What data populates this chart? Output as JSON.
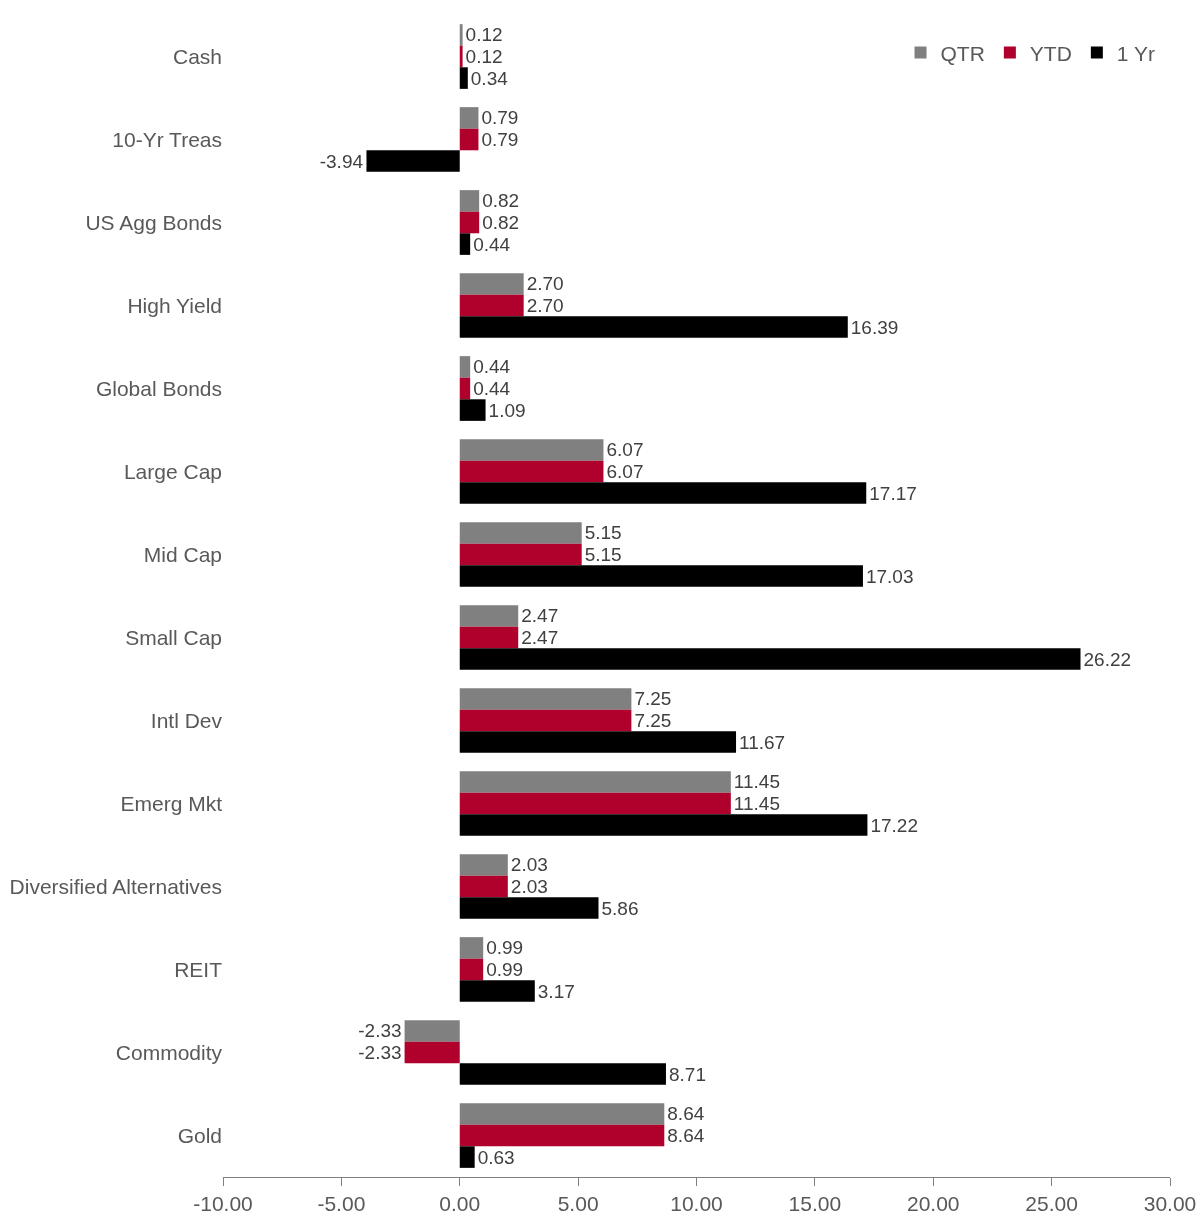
{
  "chart_data": {
    "type": "bar",
    "orientation": "horizontal",
    "categories": [
      "Cash",
      "10-Yr Treas",
      "US Agg Bonds",
      "High Yield",
      "Global Bonds",
      "Large Cap",
      "Mid Cap",
      "Small Cap",
      "Intl Dev",
      "Emerg Mkt",
      "Diversified Alternatives",
      "REIT",
      "Commodity",
      "Gold"
    ],
    "series": [
      {
        "name": "QTR",
        "color": "#808080",
        "values": [
          0.12,
          0.79,
          0.82,
          2.7,
          0.44,
          6.07,
          5.15,
          2.47,
          7.25,
          11.45,
          2.03,
          0.99,
          -2.33,
          8.64
        ],
        "value_labels": [
          "0.12",
          "0.79",
          "0.82",
          "2.70",
          "0.44",
          "6.07",
          "5.15",
          "2.47",
          "7.25",
          "11.45",
          "2.03",
          "0.99",
          "-2.33",
          "8.64"
        ]
      },
      {
        "name": "YTD",
        "color": "#b0002c",
        "values": [
          0.12,
          0.79,
          0.82,
          2.7,
          0.44,
          6.07,
          5.15,
          2.47,
          7.25,
          11.45,
          2.03,
          0.99,
          -2.33,
          8.64
        ],
        "value_labels": [
          "0.12",
          "0.79",
          "0.82",
          "2.70",
          "0.44",
          "6.07",
          "5.15",
          "2.47",
          "7.25",
          "11.45",
          "2.03",
          "0.99",
          "-2.33",
          "8.64"
        ]
      },
      {
        "name": "1 Yr",
        "color": "#000000",
        "values": [
          0.34,
          -3.94,
          0.44,
          16.39,
          1.09,
          17.17,
          17.03,
          26.22,
          11.67,
          17.22,
          5.86,
          3.17,
          8.71,
          0.63
        ],
        "value_labels": [
          "0.34",
          "-3.94",
          "0.44",
          "16.39",
          "1.09",
          "17.17",
          "17.03",
          "26.22",
          "11.67",
          "17.22",
          "5.86",
          "3.17",
          "8.71",
          "0.63"
        ]
      }
    ],
    "xlim": [
      -10,
      30
    ],
    "xticks": [
      {
        "value": -10,
        "label": "-10.00"
      },
      {
        "value": -5,
        "label": "-5.00"
      },
      {
        "value": 0,
        "label": "0.00"
      },
      {
        "value": 5,
        "label": "5.00"
      },
      {
        "value": 10,
        "label": "10.00"
      },
      {
        "value": 15,
        "label": "15.00"
      },
      {
        "value": 20,
        "label": "20.00"
      },
      {
        "value": 25,
        "label": "25.00"
      },
      {
        "value": 30,
        "label": "30.00"
      }
    ],
    "grid": false,
    "legend": "top right"
  }
}
